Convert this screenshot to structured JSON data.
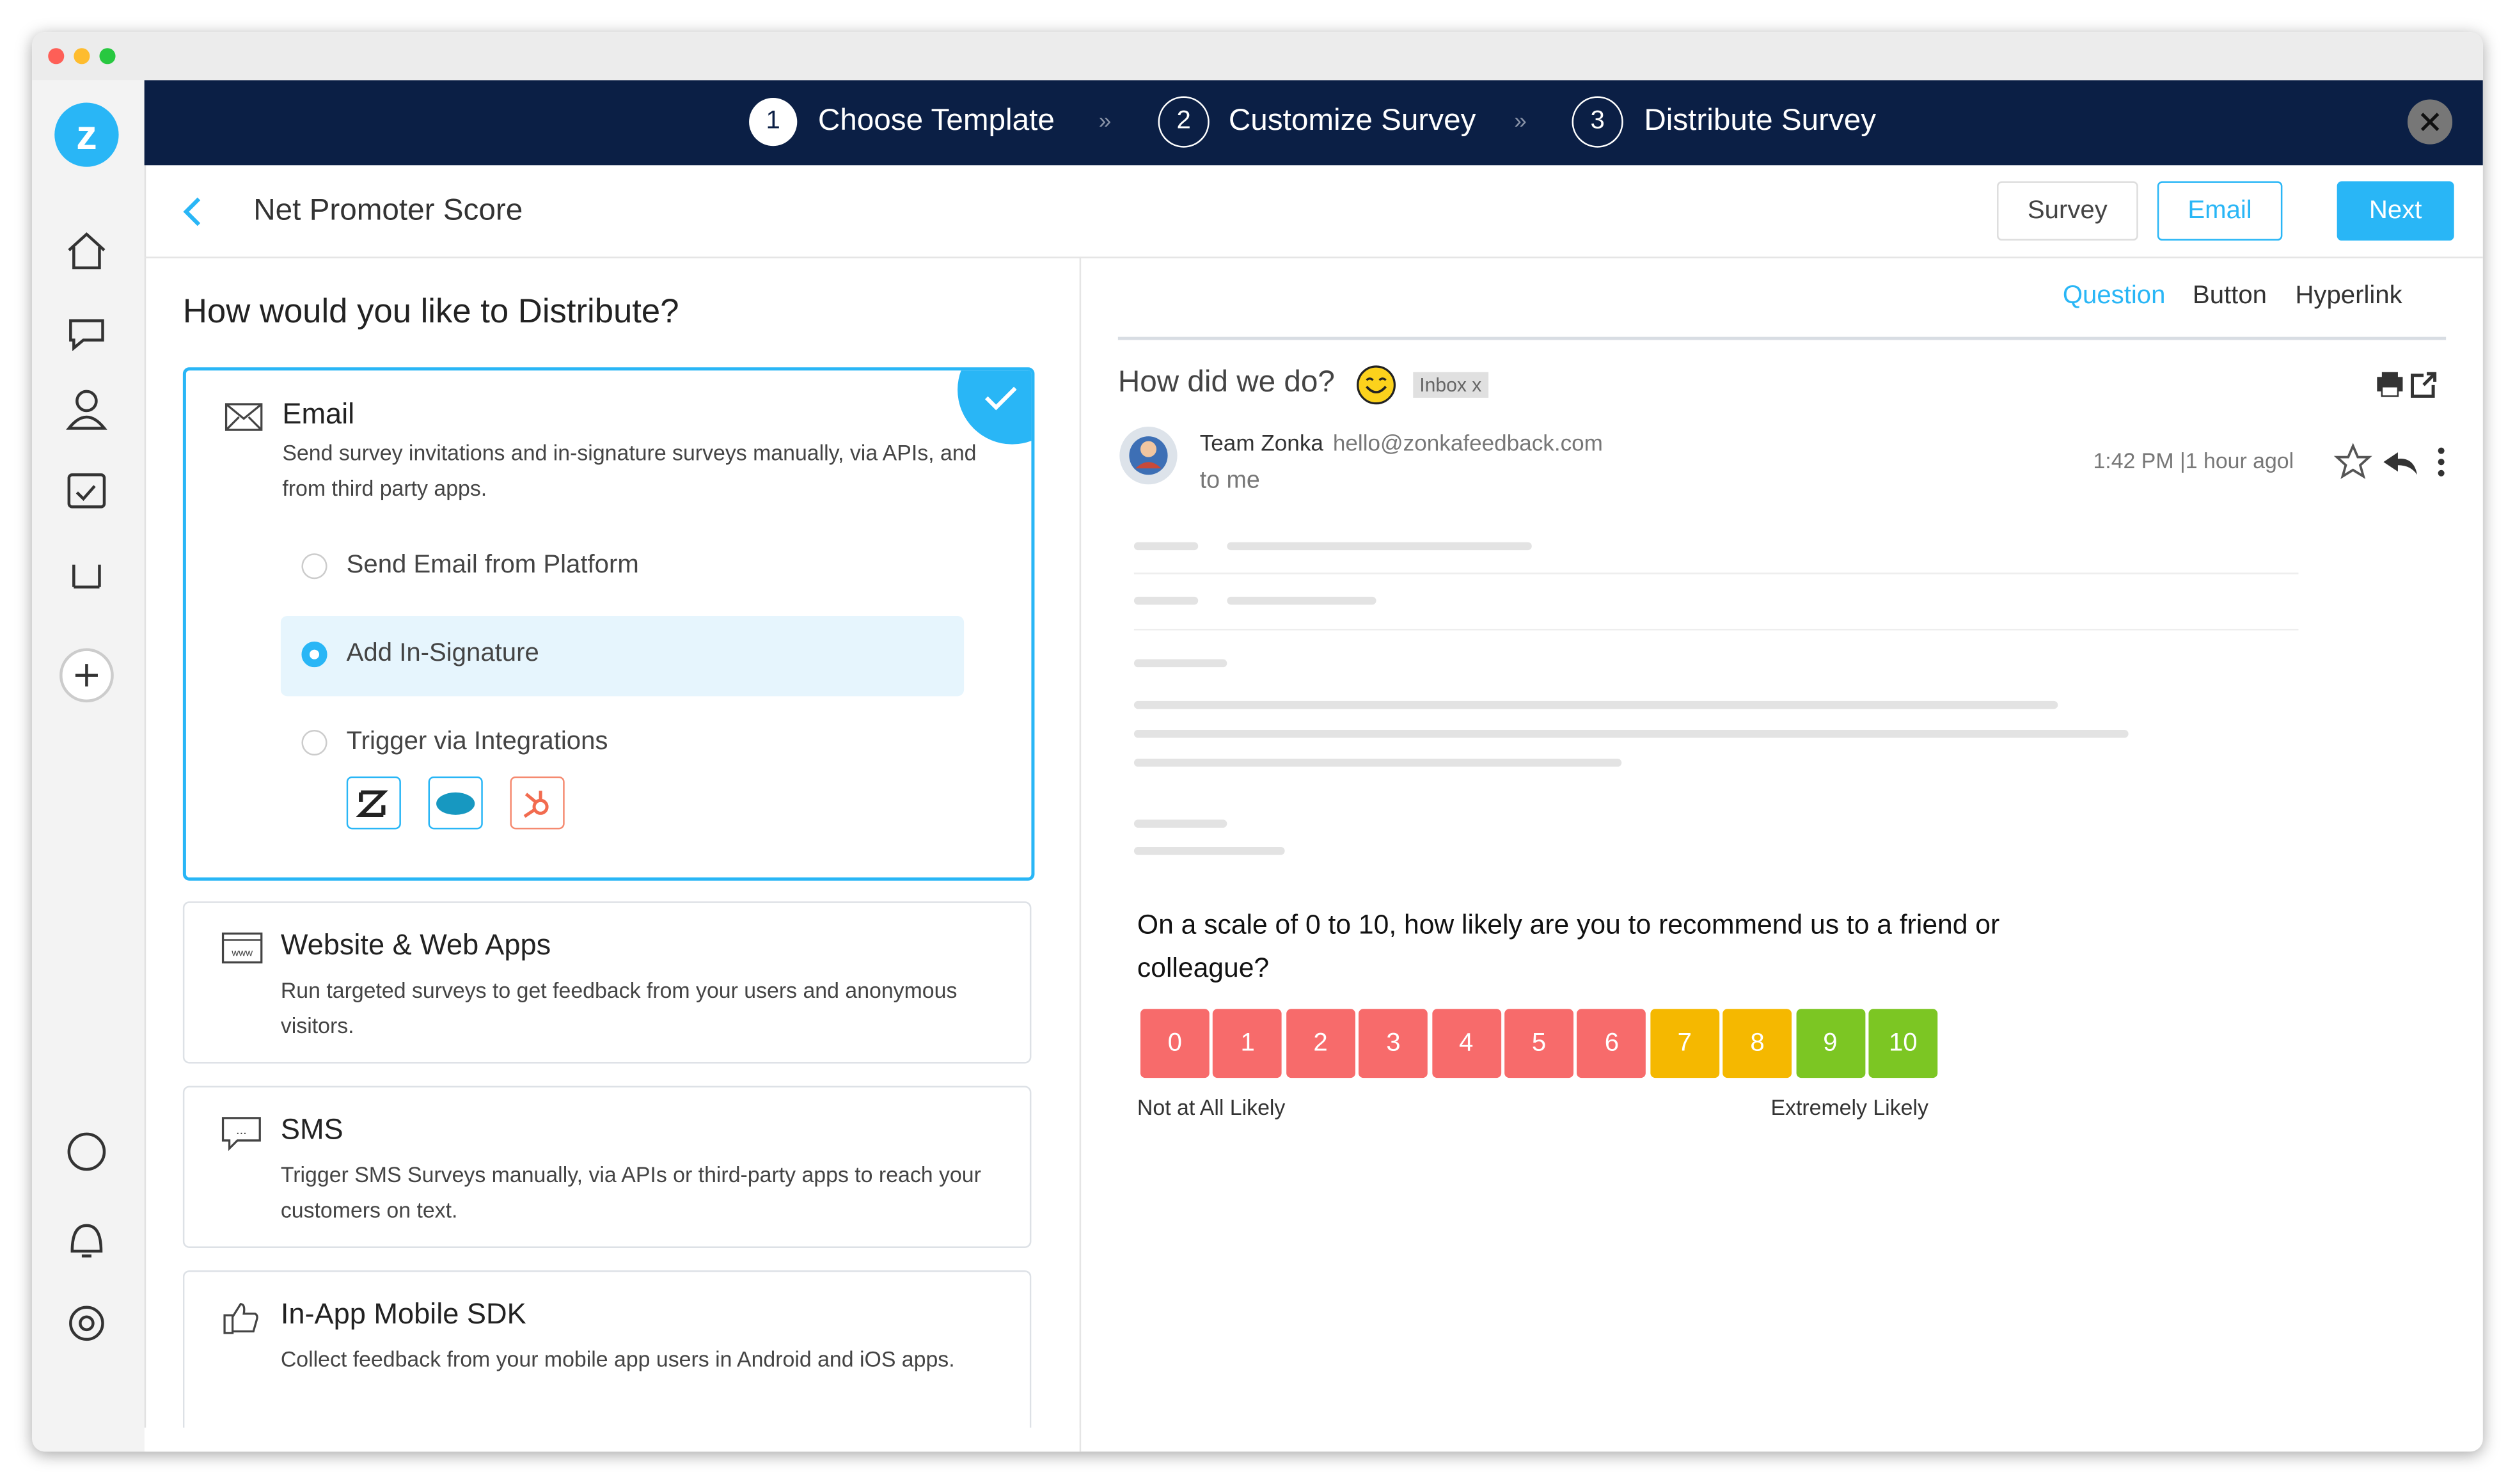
{
  "steps": [
    {
      "number": "1",
      "label": "Choose Template"
    },
    {
      "number": "2",
      "label": "Customize Survey"
    },
    {
      "number": "3",
      "label": "Distribute Survey"
    }
  ],
  "header": {
    "title": "Net Promoter Score",
    "buttons": [
      "Survey",
      "Email",
      "Next"
    ]
  },
  "left": {
    "heading": "How would you like to Distribute?",
    "options": [
      {
        "title": "Email",
        "description": "Send survey invitations and in-signature surveys manually, via APIs, and from third party apps."
      },
      {
        "title": "Website & Web Apps",
        "description": "Run targeted surveys to get feedback from your users and anonymous visitors."
      },
      {
        "title": "SMS",
        "description": "Trigger SMS Surveys manually, via APIs or third-party apps to reach your customers on text."
      },
      {
        "title": "In-App Mobile SDK",
        "description": "Collect feedback from your mobile app users in Android and iOS apps."
      }
    ],
    "email_choices": [
      "Send Email from Platform",
      "Add In-Signature",
      "Trigger via Integrations"
    ]
  },
  "preview": {
    "tabs": [
      "Question",
      "Button",
      "Hyperlink"
    ],
    "subject": "How did we do?",
    "label": "Inbox x",
    "sender": "Team Zonka",
    "sender_email": "hello@zonkafeedback.com",
    "recipient": "to me",
    "time": "1:42 PM |1 hour agol",
    "question": "On a scale of 0 to 10, how likely are you to recommend us to a friend or colleague?",
    "scale": [
      {
        "label": 0,
        "color": "#f76b6b"
      },
      {
        "label": 1,
        "color": "#f76b6b"
      },
      {
        "label": 2,
        "color": "#f76b6b"
      },
      {
        "label": 3,
        "color": "#f76b6b"
      },
      {
        "label": 4,
        "color": "#f76b6b"
      },
      {
        "label": 5,
        "color": "#f76b6b"
      },
      {
        "label": 6,
        "color": "#f76b6b"
      },
      {
        "label": 7,
        "color": "#f5b800"
      },
      {
        "label": 8,
        "color": "#f5b800"
      },
      {
        "label": 9,
        "color": "#7cc623"
      },
      {
        "label": 10,
        "color": "#7cc623"
      }
    ],
    "low_label": "Not at All Likely",
    "high_label": "Extremely Likely"
  }
}
